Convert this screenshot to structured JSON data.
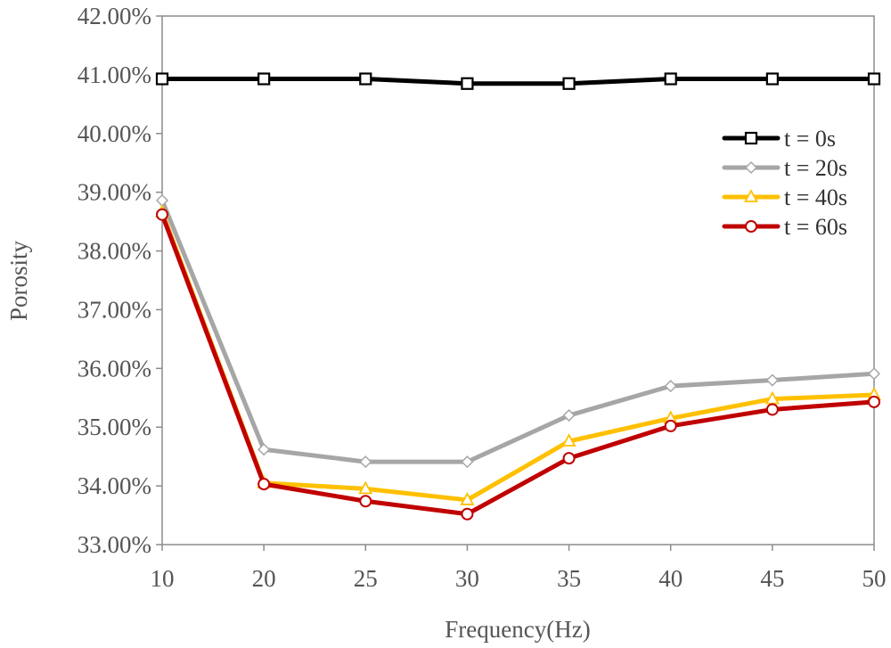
{
  "chart_data": {
    "type": "line",
    "title": "",
    "xlabel": "Frequency(Hz)",
    "ylabel": "Porosity",
    "categories": [
      "10",
      "20",
      "25",
      "30",
      "35",
      "40",
      "45",
      "50"
    ],
    "ylim": [
      0.33,
      0.42
    ],
    "ytick_values": [
      0.33,
      0.34,
      0.35,
      0.36,
      0.37,
      0.38,
      0.39,
      0.4,
      0.41,
      0.42
    ],
    "ytick_labels": [
      "33.00%",
      "34.00%",
      "35.00%",
      "36.00%",
      "37.00%",
      "38.00%",
      "39.00%",
      "40.00%",
      "41.00%",
      "42.00%"
    ],
    "grid": false,
    "legend_position": "upper-right",
    "series": [
      {
        "name": "t = 0s",
        "color": "#000000",
        "marker": "square",
        "values": [
          0.4093,
          0.4093,
          0.4093,
          0.4085,
          0.4085,
          0.4093,
          0.4093,
          0.4093
        ]
      },
      {
        "name": "t = 20s",
        "color": "#a6a6a6",
        "marker": "diamond",
        "values": [
          0.3886,
          0.3462,
          0.3441,
          0.3441,
          0.352,
          0.357,
          0.358,
          0.3591
        ]
      },
      {
        "name": "t = 40s",
        "color": "#ffc000",
        "marker": "triangle",
        "values": [
          0.3866,
          0.3405,
          0.3395,
          0.3376,
          0.3476,
          0.3515,
          0.3548,
          0.3555
        ]
      },
      {
        "name": "t = 60s",
        "color": "#c00000",
        "marker": "circle",
        "values": [
          0.3862,
          0.3403,
          0.3374,
          0.3352,
          0.3447,
          0.3502,
          0.353,
          0.3543
        ]
      }
    ]
  }
}
